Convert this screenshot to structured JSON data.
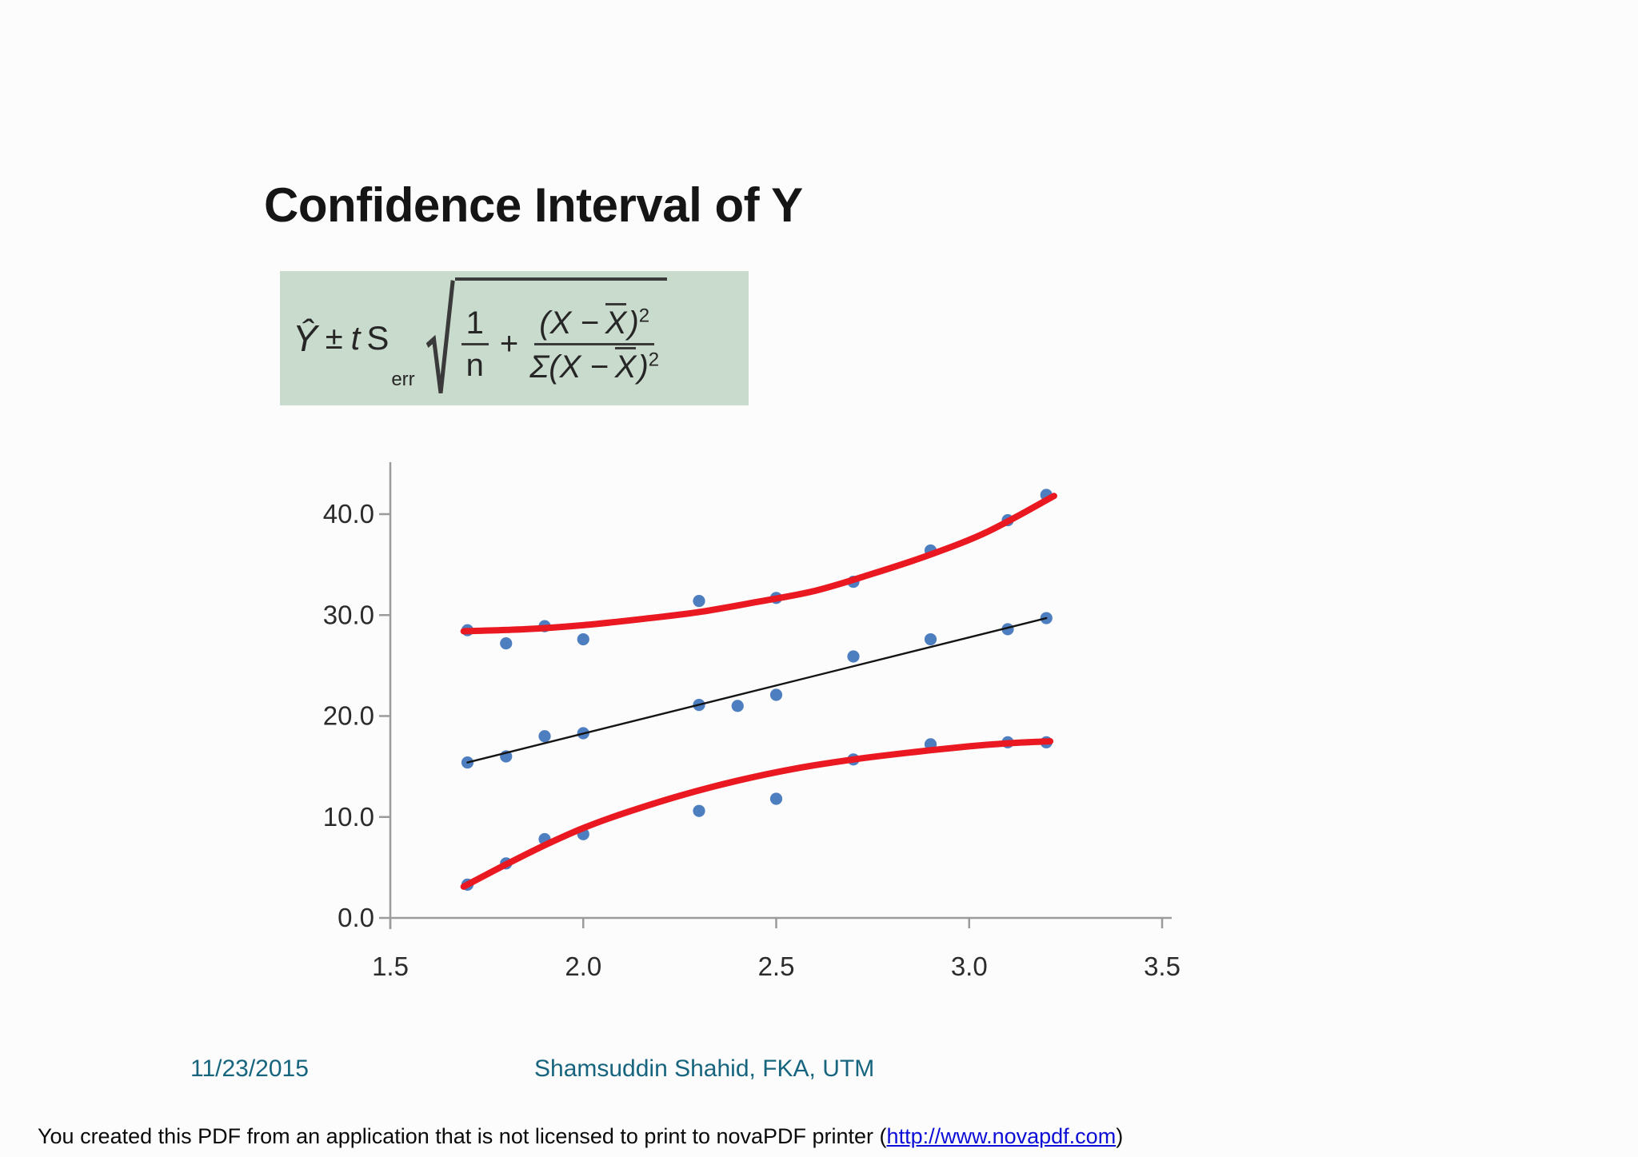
{
  "title": "Confidence Interval of Y",
  "formula": {
    "y_hat": "Ŷ",
    "plus_minus": "±",
    "t_var": "t",
    "s_var": "S",
    "s_sub": "err",
    "frac1_num": "1",
    "frac1_den": "n",
    "plus": "+",
    "num_open": "(X −",
    "num_xbar": "X",
    "num_close": ")",
    "num_exp": "2",
    "den_open": "Σ(X −",
    "den_xbar": "X",
    "den_close": ")",
    "den_exp": "2"
  },
  "chart_data": {
    "type": "scatter",
    "title": "",
    "xlabel": "",
    "ylabel": "",
    "grid": false,
    "legend": false,
    "x_axis": {
      "min": 1.5,
      "max": 3.5,
      "ticks": [
        {
          "value": 1.5,
          "label": "1.5"
        },
        {
          "value": 2.0,
          "label": "2.0"
        },
        {
          "value": 2.5,
          "label": "2.5"
        },
        {
          "value": 3.0,
          "label": "3.0"
        },
        {
          "value": 3.5,
          "label": "3.5"
        }
      ]
    },
    "y_axis": {
      "min": 0.0,
      "max": 40.0,
      "ticks": [
        {
          "value": 0.0,
          "label": "0.0"
        },
        {
          "value": 10.0,
          "label": "10.0"
        },
        {
          "value": 20.0,
          "label": "20.0"
        },
        {
          "value": 30.0,
          "label": "30.0"
        },
        {
          "value": 40.0,
          "label": "40.0"
        }
      ]
    },
    "colors": {
      "points": "#4d7ebf",
      "band": "#ea1820",
      "fit": "#141414",
      "axis": "#9b9b9b",
      "tick_text": "#2b2b2b"
    },
    "series": [
      {
        "name": "upper-confidence-points",
        "color": "#4d7ebf",
        "points": [
          [
            1.7,
            28.5
          ],
          [
            1.8,
            27.2
          ],
          [
            1.9,
            28.9
          ],
          [
            2.0,
            27.6
          ],
          [
            2.3,
            31.4
          ],
          [
            2.5,
            31.7
          ],
          [
            2.7,
            33.3
          ],
          [
            2.9,
            36.4
          ],
          [
            3.1,
            39.4
          ],
          [
            3.2,
            41.9
          ]
        ]
      },
      {
        "name": "predicted-points",
        "color": "#4d7ebf",
        "points": [
          [
            1.7,
            15.4
          ],
          [
            1.8,
            16.0
          ],
          [
            1.9,
            18.0
          ],
          [
            2.0,
            18.3
          ],
          [
            2.3,
            21.1
          ],
          [
            2.4,
            21.0
          ],
          [
            2.5,
            22.1
          ],
          [
            2.7,
            25.9
          ],
          [
            2.9,
            27.6
          ],
          [
            3.1,
            28.6
          ],
          [
            3.2,
            29.7
          ]
        ]
      },
      {
        "name": "lower-confidence-points",
        "color": "#4d7ebf",
        "points": [
          [
            1.7,
            3.3
          ],
          [
            1.8,
            5.4
          ],
          [
            1.9,
            7.8
          ],
          [
            2.0,
            8.3
          ],
          [
            2.3,
            10.6
          ],
          [
            2.5,
            11.8
          ],
          [
            2.7,
            15.7
          ],
          [
            2.9,
            17.2
          ],
          [
            3.1,
            17.4
          ],
          [
            3.2,
            17.4
          ]
        ]
      }
    ],
    "lines": [
      {
        "name": "regression-line",
        "color": "#141414",
        "width": 2.4,
        "points": [
          [
            1.7,
            15.4
          ],
          [
            3.2,
            29.7
          ]
        ]
      },
      {
        "name": "upper-confidence-band",
        "color": "#ea1820",
        "width": 8,
        "points": [
          [
            1.69,
            28.4
          ],
          [
            1.85,
            28.6
          ],
          [
            2.0,
            29.0
          ],
          [
            2.15,
            29.6
          ],
          [
            2.3,
            30.3
          ],
          [
            2.45,
            31.3
          ],
          [
            2.6,
            32.4
          ],
          [
            2.75,
            34.1
          ],
          [
            2.9,
            36.0
          ],
          [
            3.05,
            38.3
          ],
          [
            3.22,
            41.8
          ]
        ]
      },
      {
        "name": "lower-confidence-band",
        "color": "#ea1820",
        "width": 8,
        "points": [
          [
            1.69,
            3.1
          ],
          [
            1.8,
            5.3
          ],
          [
            1.9,
            7.2
          ],
          [
            2.0,
            8.9
          ],
          [
            2.1,
            10.3
          ],
          [
            2.25,
            12.1
          ],
          [
            2.4,
            13.6
          ],
          [
            2.55,
            14.8
          ],
          [
            2.7,
            15.7
          ],
          [
            2.85,
            16.4
          ],
          [
            3.0,
            17.0
          ],
          [
            3.1,
            17.3
          ],
          [
            3.21,
            17.5
          ]
        ]
      }
    ]
  },
  "footer": {
    "date": "11/23/2015",
    "author": "Shamsuddin Shahid, FKA, UTM"
  },
  "notice": {
    "prefix": "You created this PDF from an application that is not licensed to print to novaPDF printer (",
    "link": "http://www.novapdf.com",
    "suffix": ")"
  }
}
